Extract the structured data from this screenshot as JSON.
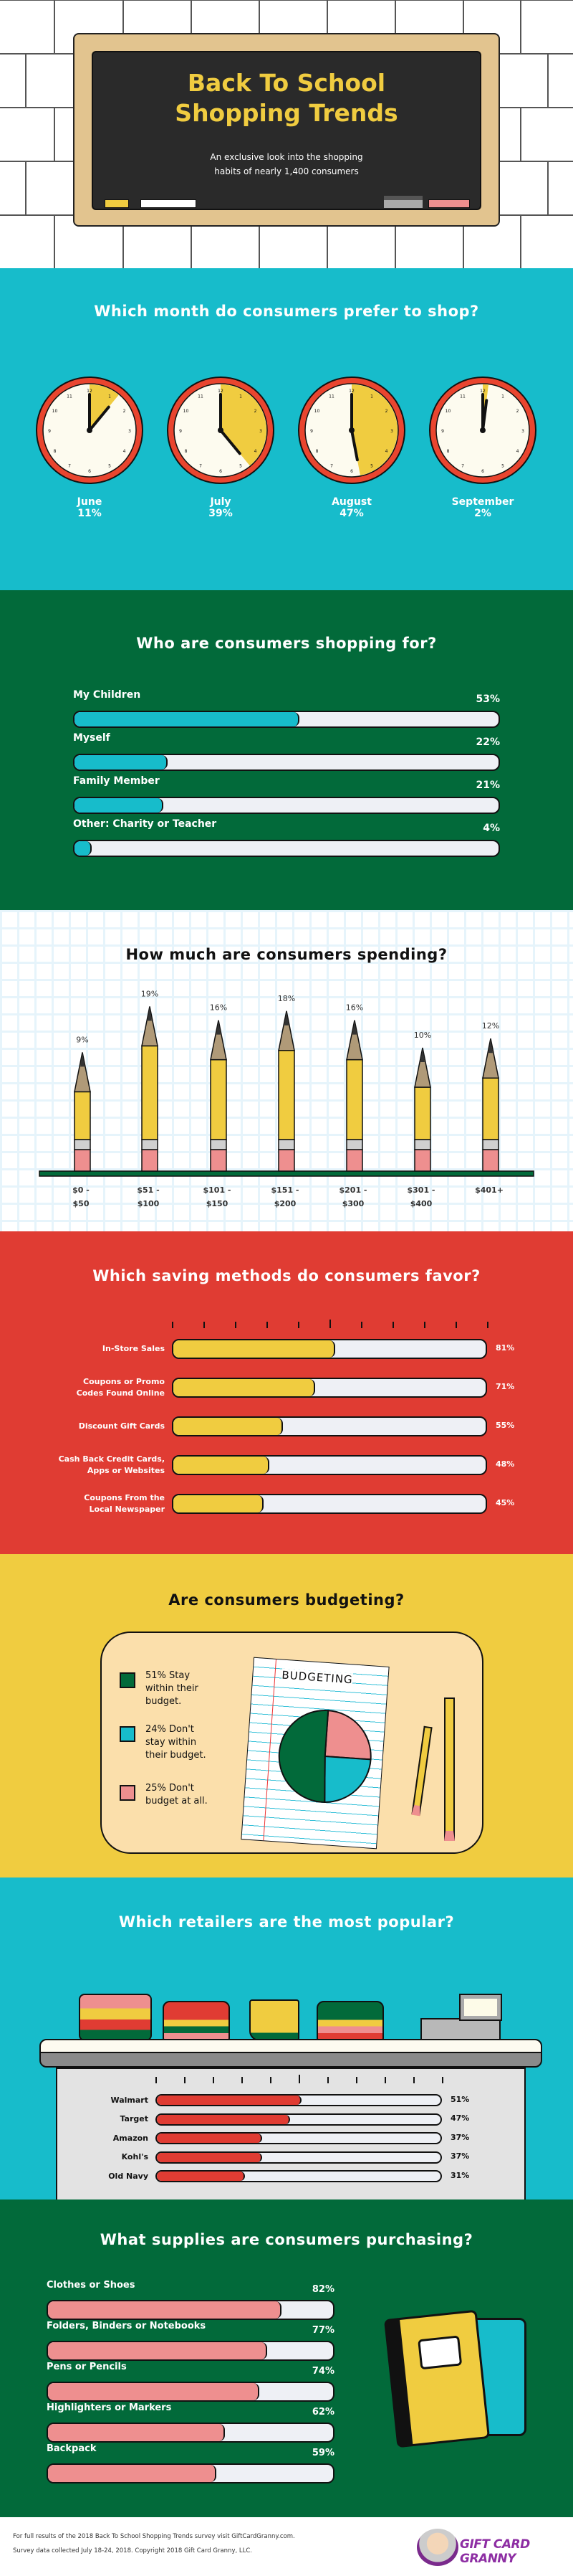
{
  "header": {
    "title_line1": "Back To School",
    "title_line2": "Shopping Trends",
    "subtitle_line1": "An exclusive look into the shopping",
    "subtitle_line2": "habits of nearly 1,400 consumers"
  },
  "colors": {
    "teal": "#17bccb",
    "green": "#026a3a",
    "red": "#e03c33",
    "yellow": "#f0cc40",
    "pink": "#ee8f8f",
    "chalkboard": "#2a2a2a",
    "wood": "#e2c48f"
  },
  "months": {
    "title": "Which month do consumers prefer to shop?",
    "items": [
      {
        "label": "June",
        "value": 11,
        "pct": "11%"
      },
      {
        "label": "July",
        "value": 39,
        "pct": "39%"
      },
      {
        "label": "August",
        "value": 47,
        "pct": "47%"
      },
      {
        "label": "September",
        "value": 2,
        "pct": "2%"
      }
    ]
  },
  "shopping_for": {
    "title": "Who are consumers shopping for?",
    "items": [
      {
        "label": "My Children",
        "value": 53,
        "pct": "53%"
      },
      {
        "label": "Myself",
        "value": 22,
        "pct": "22%"
      },
      {
        "label": "Family Member",
        "value": 21,
        "pct": "21%"
      },
      {
        "label": "Other: Charity or Teacher",
        "value": 4,
        "pct": "4%"
      }
    ]
  },
  "spending": {
    "title": "How much are consumers spending?",
    "chart_data": {
      "type": "bar",
      "categories": [
        "$0 - $50",
        "$51 - $100",
        "$101 - $150",
        "$151 - $200",
        "$201 - $300",
        "$301 - $400",
        "$401+"
      ],
      "values": [
        9,
        19,
        16,
        18,
        16,
        10,
        12
      ],
      "labels": [
        "9%",
        "19%",
        "16%",
        "18%",
        "16%",
        "10%",
        "12%"
      ],
      "cat_line1": [
        "$0 -",
        "$51 -",
        "$101 -",
        "$151 -",
        "$201 -",
        "$301 -",
        "$401+"
      ],
      "cat_line2": [
        "$50",
        "$100",
        "$150",
        "$200",
        "$300",
        "$400",
        ""
      ]
    }
  },
  "saving": {
    "title": "Which saving methods do consumers favor?",
    "items": [
      {
        "line1": "In-Store Sales",
        "line2": "",
        "value": 81,
        "pct": "81%"
      },
      {
        "line1": "Coupons or Promo",
        "line2": "Codes Found Online",
        "value": 71,
        "pct": "71%"
      },
      {
        "line1": "Discount Gift Cards",
        "line2": "",
        "value": 55,
        "pct": "55%"
      },
      {
        "line1": "Cash Back Credit Cards,",
        "line2": "Apps or Websites",
        "value": 48,
        "pct": "48%"
      },
      {
        "line1": "Coupons From the",
        "line2": "Local Newspaper",
        "value": 45,
        "pct": "45%"
      }
    ]
  },
  "budgeting": {
    "title": "Are consumers budgeting?",
    "paper_heading": "BUDGETING",
    "legend": [
      {
        "text": "51% Stay within their budget.",
        "value": 51,
        "color": "#026a3a"
      },
      {
        "text": "24% Don't stay within their budget.",
        "value": 24,
        "color": "#17bccb"
      },
      {
        "text": "25% Don't budget at all.",
        "value": 25,
        "color": "#ee8f8f"
      }
    ]
  },
  "retailers": {
    "title": "Which retailers are the most popular?",
    "items": [
      {
        "label": "Walmart",
        "value": 51,
        "pct": "51%"
      },
      {
        "label": "Target",
        "value": 47,
        "pct": "47%"
      },
      {
        "label": "Amazon",
        "value": 37,
        "pct": "37%"
      },
      {
        "label": "Kohl's",
        "value": 37,
        "pct": "37%"
      },
      {
        "label": "Old Navy",
        "value": 31,
        "pct": "31%"
      }
    ]
  },
  "supplies": {
    "title": "What supplies are consumers purchasing?",
    "items": [
      {
        "label": "Clothes or Shoes",
        "value": 82,
        "pct": "82%"
      },
      {
        "label": "Folders, Binders or Notebooks",
        "value": 77,
        "pct": "77%"
      },
      {
        "label": "Pens or Pencils",
        "value": 74,
        "pct": "74%"
      },
      {
        "label": "Highlighters or Markers",
        "value": 62,
        "pct": "62%"
      },
      {
        "label": "Backpack",
        "value": 59,
        "pct": "59%"
      }
    ]
  },
  "footer": {
    "line1": "For full results of the 2018 Back To School Shopping Trends survey visit GiftCardGranny.com.",
    "line2": "Survey data collected July 18-24, 2018. Copyright 2018 Gift Card Granny, LLC.",
    "logo_text": "GIFT CARD GRANNY"
  }
}
